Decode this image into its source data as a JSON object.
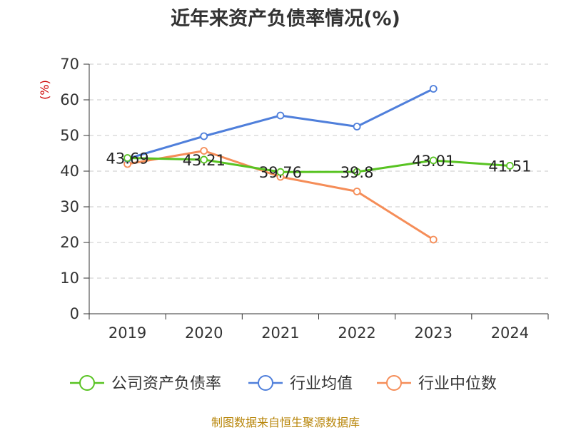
{
  "title": "近年来资产负债率情况(%)",
  "source": "制图数据来自恒生聚源数据库",
  "colors": {
    "company": "#58c322",
    "industry_avg": "#4f7fdb",
    "industry_median": "#f58d58",
    "ylabel": "#cc0000",
    "source": "#b8860b"
  },
  "chart_data": {
    "type": "line",
    "title": "近年来资产负债率情况(%)",
    "ylabel": "(%)",
    "xlabel": "",
    "ylim": [
      0,
      70
    ],
    "yticks": [
      "0",
      "10",
      "20",
      "30",
      "40",
      "50",
      "60",
      "70"
    ],
    "categories": [
      "2019",
      "2020",
      "2021",
      "2022",
      "2023",
      "2024"
    ],
    "grid": true,
    "legend_position": "bottom",
    "series": [
      {
        "name": "公司资产负债率",
        "color": "#58c322",
        "values": [
          43.69,
          43.21,
          39.76,
          39.8,
          43.01,
          41.51
        ],
        "labels": [
          "43.69",
          "43.21",
          "39.76",
          "39.8",
          "43.01",
          "41.51"
        ]
      },
      {
        "name": "行业均值",
        "color": "#4f7fdb",
        "values": [
          43.5,
          49.8,
          55.6,
          52.5,
          63.1,
          null
        ]
      },
      {
        "name": "行业中位数",
        "color": "#f58d58",
        "values": [
          42.0,
          45.7,
          38.4,
          34.3,
          20.8,
          null
        ]
      }
    ]
  }
}
